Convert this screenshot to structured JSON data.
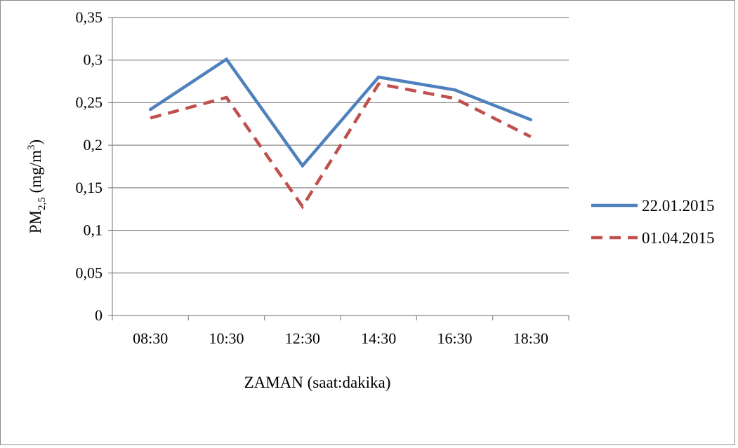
{
  "chart_data": {
    "type": "line",
    "title": "",
    "xlabel": "ZAMAN (saat:dakika)",
    "ylabel": {
      "prefix": "PM",
      "subscript": "2,5",
      "unit_base": " (mg/m",
      "unit_sup": "3",
      "unit_close": ")"
    },
    "categories": [
      "08:30",
      "10:30",
      "12:30",
      "14:30",
      "16:30",
      "18:30"
    ],
    "ylim": [
      0,
      0.35
    ],
    "yticks": [
      "0",
      "0,05",
      "0,1",
      "0,15",
      "0,2",
      "0,25",
      "0,3",
      "0,35"
    ],
    "grid": true,
    "legend": "right",
    "series": [
      {
        "name": "22.01.2015",
        "values": [
          0.242,
          0.301,
          0.176,
          0.28,
          0.265,
          0.23
        ],
        "color": "#4f81bd",
        "style": "solid"
      },
      {
        "name": "01.04.2015",
        "values": [
          0.232,
          0.256,
          0.128,
          0.272,
          0.255,
          0.21
        ],
        "color": "#c0504d",
        "style": "dashed"
      }
    ]
  }
}
